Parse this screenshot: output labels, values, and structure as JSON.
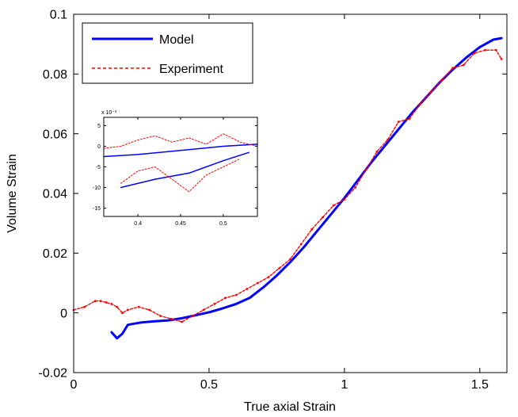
{
  "chart_data": [
    {
      "type": "line",
      "title": "",
      "xlabel": "True axial Strain",
      "ylabel": "Volume Strain",
      "xlim": [
        0,
        1.6
      ],
      "ylim": [
        -0.02,
        0.1
      ],
      "xticks": [
        0,
        0.5,
        1,
        1.5
      ],
      "xtick_labels": [
        "0",
        "0.5",
        "1",
        "1.5"
      ],
      "yticks": [
        -0.02,
        0,
        0.02,
        0.04,
        0.06,
        0.08,
        0.1
      ],
      "ytick_labels": [
        "-0.02",
        "0",
        "0.02",
        "0.04",
        "0.06",
        "0.08",
        "0.1"
      ],
      "grid": false,
      "legend_position": "top-left",
      "series": [
        {
          "name": "Model",
          "color": "#0000ff",
          "style": "solid",
          "x": [
            0.14,
            0.16,
            0.18,
            0.2,
            0.25,
            0.3,
            0.35,
            0.4,
            0.45,
            0.5,
            0.55,
            0.6,
            0.65,
            0.7,
            0.75,
            0.8,
            0.85,
            0.9,
            0.95,
            1.0,
            1.05,
            1.1,
            1.15,
            1.2,
            1.25,
            1.3,
            1.35,
            1.4,
            1.45,
            1.5,
            1.55,
            1.58
          ],
          "y": [
            -0.0065,
            -0.0085,
            -0.007,
            -0.004,
            -0.0032,
            -0.0028,
            -0.0025,
            -0.0018,
            -0.0008,
            0.0002,
            0.0015,
            0.003,
            0.005,
            0.0085,
            0.0125,
            0.017,
            0.022,
            0.0275,
            0.033,
            0.0385,
            0.0445,
            0.0505,
            0.056,
            0.0615,
            0.067,
            0.072,
            0.077,
            0.0815,
            0.0855,
            0.089,
            0.0915,
            0.092
          ]
        },
        {
          "name": "Experiment",
          "color": "#ff0000",
          "style": "dashed",
          "x": [
            0.0,
            0.04,
            0.08,
            0.1,
            0.12,
            0.14,
            0.16,
            0.18,
            0.2,
            0.24,
            0.28,
            0.32,
            0.36,
            0.4,
            0.44,
            0.48,
            0.52,
            0.56,
            0.6,
            0.64,
            0.68,
            0.72,
            0.76,
            0.8,
            0.84,
            0.88,
            0.92,
            0.96,
            1.0,
            1.04,
            1.08,
            1.12,
            1.16,
            1.2,
            1.24,
            1.28,
            1.32,
            1.36,
            1.4,
            1.44,
            1.48,
            1.52,
            1.56,
            1.58
          ],
          "y": [
            0.001,
            0.002,
            0.004,
            0.004,
            0.0035,
            0.003,
            0.002,
            0.0,
            0.001,
            0.002,
            0.001,
            -0.001,
            -0.002,
            -0.003,
            -0.001,
            0.001,
            0.003,
            0.005,
            0.006,
            0.008,
            0.01,
            0.012,
            0.015,
            0.018,
            0.023,
            0.028,
            0.032,
            0.036,
            0.038,
            0.042,
            0.048,
            0.054,
            0.058,
            0.064,
            0.065,
            0.07,
            0.074,
            0.078,
            0.082,
            0.083,
            0.087,
            0.088,
            0.088,
            0.085
          ]
        }
      ]
    },
    {
      "type": "line",
      "title": "",
      "xlabel": "",
      "ylabel": "",
      "y_multiplier_label": "x 10⁻³",
      "xlim": [
        0.36,
        0.54
      ],
      "ylim": [
        -17,
        7
      ],
      "xticks": [
        0.4,
        0.45,
        0.5
      ],
      "xtick_labels": [
        "0.4",
        "0.45",
        "0.5"
      ],
      "yticks": [
        5,
        0,
        -5,
        -10,
        -15
      ],
      "ytick_labels": [
        "5",
        "0",
        "-5",
        "-10",
        "-15"
      ],
      "grid": false,
      "legend_position": "none",
      "series": [
        {
          "color": "#0000ff",
          "style": "solid",
          "x": [
            0.36,
            0.4,
            0.45,
            0.5,
            0.54
          ],
          "y": [
            -2.5,
            -2.0,
            -1.0,
            0.0,
            0.5
          ]
        },
        {
          "color": "#0000ff",
          "style": "solid",
          "x": [
            0.38,
            0.42,
            0.46,
            0.5,
            0.53
          ],
          "y": [
            -10.0,
            -8.0,
            -6.5,
            -3.5,
            -1.5
          ]
        },
        {
          "color": "#ff0000",
          "style": "dashed",
          "x": [
            0.36,
            0.38,
            0.4,
            0.42,
            0.44,
            0.46,
            0.48,
            0.5,
            0.52,
            0.54
          ],
          "y": [
            -0.5,
            0.0,
            1.5,
            2.5,
            1.0,
            2.0,
            0.5,
            3.0,
            1.0,
            0.0
          ]
        },
        {
          "color": "#ff0000",
          "style": "dashed",
          "x": [
            0.38,
            0.4,
            0.42,
            0.44,
            0.46,
            0.48,
            0.5,
            0.52
          ],
          "y": [
            -9.0,
            -6.0,
            -5.0,
            -8.0,
            -11.0,
            -7.0,
            -5.0,
            -3.0
          ]
        }
      ]
    }
  ]
}
